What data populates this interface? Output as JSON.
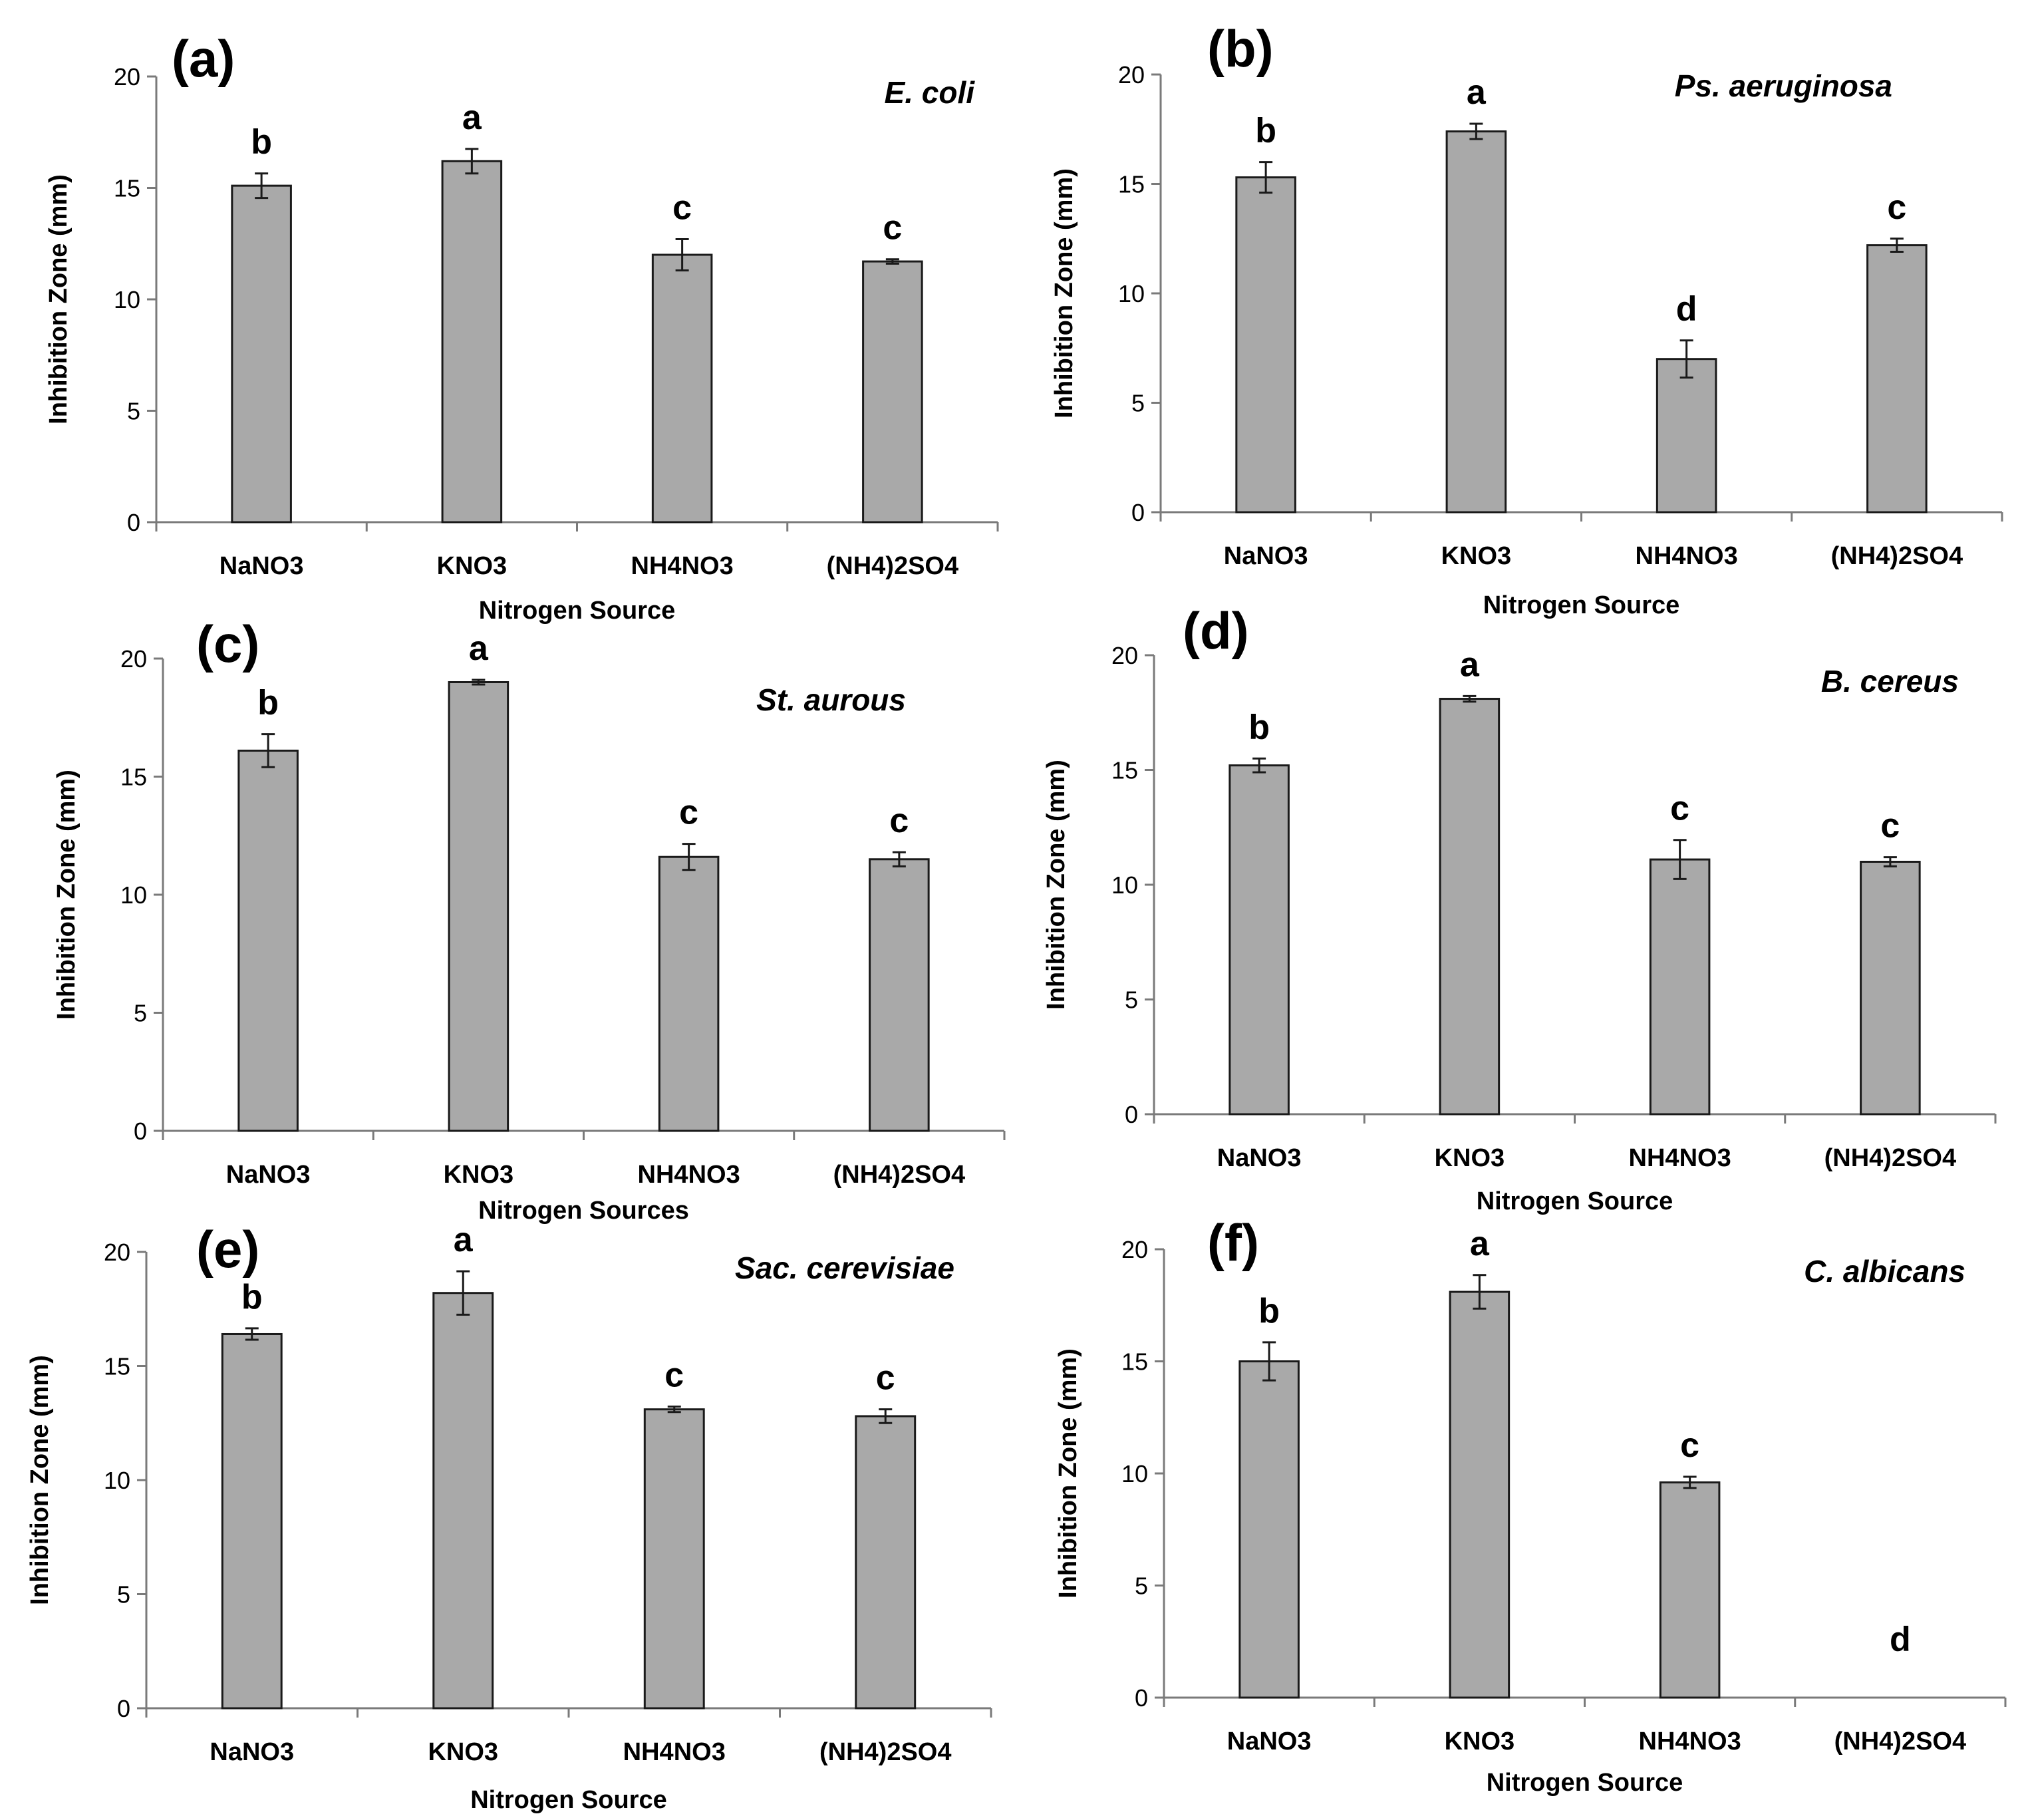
{
  "figure": {
    "colors": {
      "bar_fill": "#a9a9a9",
      "bar_stroke": "#1a1a1a",
      "axis": "#7a7a7a",
      "text": "#000000"
    }
  },
  "chart_data": [
    {
      "type": "bar",
      "panel": "(a)",
      "species": "E. coli",
      "categories": [
        "NaNO3",
        "KNO3",
        "NH4NO3",
        "(NH4)2SO4"
      ],
      "values": [
        15.1,
        16.2,
        12.0,
        11.7
      ],
      "errors": [
        0.55,
        0.55,
        0.7,
        0.1
      ],
      "significance": [
        "b",
        "a",
        "c",
        "c"
      ],
      "xlabel": "Nitrogen Source",
      "ylabel": "Inhibition Zone (mm)",
      "ylim": [
        0,
        20
      ],
      "yticks": [
        0,
        5,
        10,
        15,
        20
      ],
      "grid": false,
      "legend": "none"
    },
    {
      "type": "bar",
      "panel": "(b)",
      "species": "Ps. aeruginosa",
      "categories": [
        "NaNO3",
        "KNO3",
        "NH4NO3",
        "(NH4)2SO4"
      ],
      "values": [
        15.3,
        17.4,
        7.0,
        12.2
      ],
      "errors": [
        0.7,
        0.35,
        0.85,
        0.3
      ],
      "significance": [
        "b",
        "a",
        "d",
        "c"
      ],
      "xlabel": "Nitrogen Source",
      "ylabel": "Inhibition  Zone (mm)",
      "ylim": [
        0,
        20
      ],
      "yticks": [
        0,
        5,
        10,
        15,
        20
      ],
      "grid": false,
      "legend": "none"
    },
    {
      "type": "bar",
      "panel": "(c)",
      "species": "St. aurous",
      "categories": [
        "NaNO3",
        "KNO3",
        "NH4NO3",
        "(NH4)2SO4"
      ],
      "values": [
        16.1,
        19.0,
        11.6,
        11.5
      ],
      "errors": [
        0.7,
        0.1,
        0.55,
        0.3
      ],
      "significance": [
        "b",
        "a",
        "c",
        "c"
      ],
      "xlabel": "Nitrogen Sources",
      "ylabel": "Inhibition Zone (mm)",
      "ylim": [
        0,
        20
      ],
      "yticks": [
        0,
        5,
        10,
        15,
        20
      ],
      "grid": false,
      "legend": "none"
    },
    {
      "type": "bar",
      "panel": "(d)",
      "species": "B. cereus",
      "categories": [
        "NaNO3",
        "KNO3",
        "NH4NO3",
        "(NH4)2SO4"
      ],
      "values": [
        15.2,
        18.1,
        11.1,
        11.0
      ],
      "errors": [
        0.3,
        0.12,
        0.85,
        0.2
      ],
      "significance": [
        "b",
        "a",
        "c",
        "c"
      ],
      "xlabel": "Nitrogen  Source",
      "ylabel": "Inhibition Zone (mm)",
      "ylim": [
        0,
        20
      ],
      "yticks": [
        0,
        5,
        10,
        15,
        20
      ],
      "grid": false,
      "legend": "none"
    },
    {
      "type": "bar",
      "panel": "(e)",
      "species": "Sac. cerevisiae",
      "categories": [
        "NaNO3",
        "KNO3",
        "NH4NO3",
        "(NH4)2SO4"
      ],
      "values": [
        16.4,
        18.2,
        13.1,
        12.8
      ],
      "errors": [
        0.25,
        0.95,
        0.12,
        0.3
      ],
      "significance": [
        "b",
        "a",
        "c",
        "c"
      ],
      "xlabel": "Nitrogen Source",
      "ylabel": "Inhibition  Zone (mm)",
      "ylim": [
        0,
        20
      ],
      "yticks": [
        0,
        5,
        10,
        15,
        20
      ],
      "grid": false,
      "legend": "none"
    },
    {
      "type": "bar",
      "panel": "(f)",
      "species": "C. albicans",
      "categories": [
        "NaNO3",
        "KNO3",
        "NH4NO3",
        "(NH4)2SO4"
      ],
      "values": [
        15.0,
        18.1,
        9.6,
        0
      ],
      "errors": [
        0.85,
        0.75,
        0.25,
        0
      ],
      "significance": [
        "b",
        "a",
        "c",
        "d"
      ],
      "xlabel": "Nitrogen Source",
      "ylabel": "Inhibition Zone (mm)",
      "ylim": [
        0,
        20
      ],
      "yticks": [
        0,
        5,
        10,
        15,
        20
      ],
      "grid": false,
      "legend": "none"
    }
  ]
}
